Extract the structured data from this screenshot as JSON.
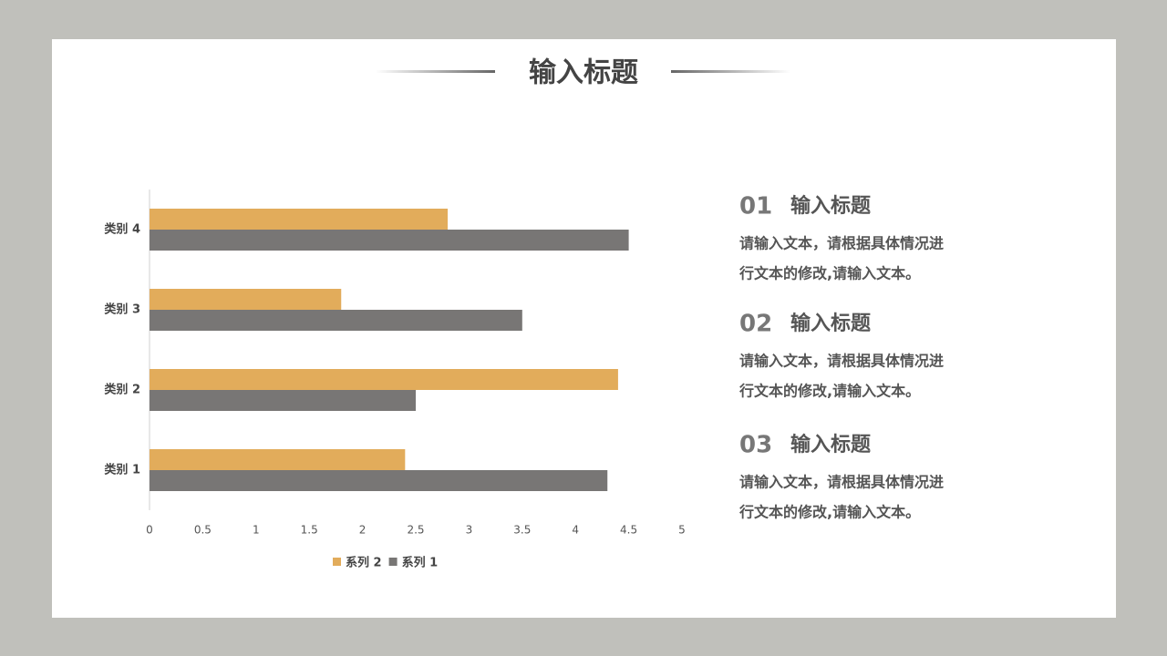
{
  "header": {
    "title": "输入标题"
  },
  "chart_data": {
    "type": "hbar",
    "categories": [
      "类别 1",
      "类别 2",
      "类别 3",
      "类别 4"
    ],
    "series": [
      {
        "name": "系列 2",
        "color": "#e2ac5b",
        "values": [
          2.4,
          4.4,
          1.8,
          2.8
        ]
      },
      {
        "name": "系列 1",
        "color": "#787675",
        "values": [
          4.3,
          2.5,
          3.5,
          4.5
        ]
      }
    ],
    "xlim": [
      0,
      5
    ],
    "xticks": [
      0,
      0.5,
      1,
      1.5,
      2,
      2.5,
      3,
      3.5,
      4,
      4.5,
      5
    ],
    "legend": "bottom"
  },
  "items": [
    {
      "number": "01",
      "heading": "输入标题",
      "lines": [
        "请输入文本，请根据具体情况进",
        "行文本的修改,请输入文本。"
      ]
    },
    {
      "number": "02",
      "heading": "输入标题",
      "lines": [
        "请输入文本，请根据具体情况进",
        "行文本的修改,请输入文本。"
      ]
    },
    {
      "number": "03",
      "heading": "输入标题",
      "lines": [
        "请输入文本，请根据具体情况进",
        "行文本的修改,请输入文本。"
      ]
    }
  ]
}
